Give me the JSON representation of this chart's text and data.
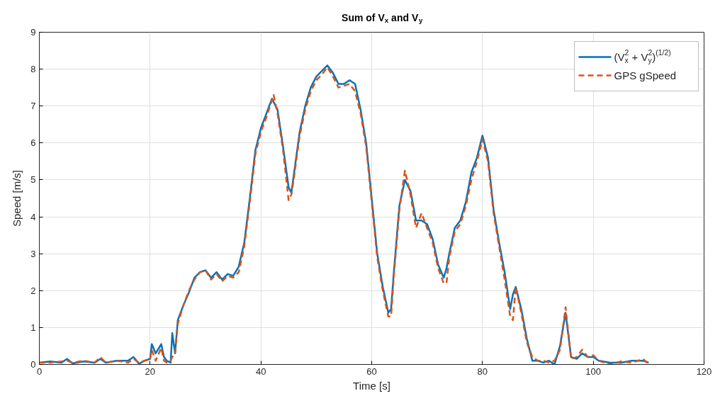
{
  "chart_data": {
    "type": "line",
    "title": "Sum of V$_{x}$ and V$_{y}$",
    "xlabel": "Time [s]",
    "ylabel": "Speed [m/s]",
    "xlim": [
      0,
      120
    ],
    "ylim": [
      0,
      9
    ],
    "xticks": [
      0,
      20,
      40,
      60,
      80,
      100,
      120
    ],
    "yticks": [
      0,
      1,
      2,
      3,
      4,
      5,
      6,
      7,
      8,
      9
    ],
    "grid": true,
    "legend": "top right",
    "marker": "none",
    "series": [
      {
        "name": "(V$_{x}$$^{2}$ + V$_{y}$$^{2}$)$^{(1/2)}$",
        "color": "#0072bd",
        "line_style": "solid",
        "x": [
          0,
          2,
          4,
          5,
          6,
          8,
          10,
          11,
          12,
          14,
          16,
          17,
          18,
          19,
          20,
          20.3,
          21,
          22,
          22.5,
          23,
          23.7,
          24,
          24.5,
          25,
          26,
          27,
          28,
          29,
          30,
          31,
          32,
          33,
          34,
          35,
          36,
          37,
          38,
          39,
          40,
          41,
          42,
          43,
          44,
          45,
          45.5,
          46,
          47,
          48,
          49,
          50,
          51,
          52,
          53,
          54,
          55,
          56,
          57,
          58,
          59,
          60,
          61,
          62,
          63,
          63.5,
          64,
          65,
          66,
          67,
          68,
          69,
          70,
          71,
          72,
          73,
          73.5,
          74,
          75,
          76,
          77,
          78,
          79,
          80,
          81,
          82,
          83,
          84,
          85,
          85.5,
          86,
          87,
          88,
          89,
          90,
          91,
          92,
          93,
          94,
          95,
          96,
          97,
          98,
          99,
          100,
          101,
          103,
          105,
          107,
          109,
          110
        ],
        "values": [
          0.05,
          0.08,
          0.05,
          0.15,
          0.03,
          0.08,
          0.05,
          0.15,
          0.05,
          0.1,
          0.1,
          0.2,
          0.02,
          0.1,
          0.15,
          0.55,
          0.3,
          0.55,
          0.2,
          0.1,
          0.05,
          0.85,
          0.3,
          1.2,
          1.6,
          1.95,
          2.35,
          2.5,
          2.55,
          2.35,
          2.5,
          2.3,
          2.45,
          2.4,
          2.65,
          3.3,
          4.5,
          5.8,
          6.4,
          6.8,
          7.2,
          6.9,
          5.9,
          4.8,
          4.65,
          5.2,
          6.3,
          7.0,
          7.5,
          7.8,
          7.95,
          8.1,
          7.9,
          7.6,
          7.6,
          7.7,
          7.6,
          6.9,
          6.0,
          4.5,
          3.0,
          2.1,
          1.4,
          1.5,
          2.5,
          4.3,
          5.0,
          4.7,
          3.9,
          3.9,
          3.8,
          3.4,
          2.7,
          2.35,
          2.6,
          3.0,
          3.7,
          3.9,
          4.4,
          5.2,
          5.6,
          6.2,
          5.6,
          4.2,
          3.3,
          2.5,
          1.5,
          1.9,
          2.1,
          1.5,
          0.7,
          0.1,
          0.1,
          0.05,
          0.1,
          0.0,
          0.5,
          1.4,
          0.2,
          0.15,
          0.3,
          0.2,
          0.2,
          0.1,
          0.05,
          0.05,
          0.1,
          0.1,
          0.05
        ]
      },
      {
        "name": "GPS gSpeed",
        "color": "#d95319",
        "line_style": "dashed",
        "x": [
          0,
          2,
          4,
          5,
          6,
          8,
          10,
          11,
          12,
          14,
          16,
          17,
          18,
          19,
          20,
          20.3,
          21,
          22,
          22.5,
          23,
          23.7,
          24,
          24.5,
          25,
          26,
          27,
          28,
          29,
          30,
          31,
          32,
          33,
          34,
          35,
          36,
          37,
          38,
          39,
          40,
          41,
          42.3,
          43,
          44,
          45,
          45.5,
          46,
          47,
          48,
          49,
          50,
          51,
          52,
          53,
          54,
          55,
          56,
          57,
          58,
          59,
          60,
          61,
          62,
          63,
          63.5,
          64,
          65,
          66,
          67,
          68,
          69,
          70,
          71,
          72,
          73,
          73.5,
          74,
          75,
          76,
          77,
          78,
          79,
          80,
          81,
          82,
          83,
          84,
          85,
          85.5,
          86,
          87,
          88,
          89,
          90,
          91,
          92,
          93,
          94,
          95,
          96,
          97,
          98,
          99,
          100,
          101,
          103,
          105,
          107,
          109,
          110
        ],
        "values": [
          0.05,
          0.05,
          0.08,
          0.1,
          0.05,
          0.1,
          0.05,
          0.2,
          0.05,
          0.1,
          0.05,
          0.15,
          0.05,
          0.1,
          0.15,
          0.4,
          0.1,
          0.45,
          0.1,
          0.05,
          0.1,
          0.2,
          0.3,
          1.1,
          1.6,
          2.0,
          2.3,
          2.5,
          2.55,
          2.3,
          2.45,
          2.25,
          2.4,
          2.35,
          2.5,
          3.2,
          4.4,
          5.7,
          6.3,
          6.7,
          7.3,
          6.8,
          5.8,
          4.45,
          4.6,
          5.1,
          6.2,
          6.9,
          7.4,
          7.7,
          7.85,
          8.05,
          7.8,
          7.5,
          7.55,
          7.6,
          7.4,
          6.8,
          5.9,
          4.4,
          2.9,
          2.0,
          1.3,
          1.3,
          2.4,
          4.2,
          5.25,
          4.6,
          3.7,
          4.1,
          3.7,
          3.3,
          2.6,
          2.2,
          2.2,
          2.9,
          3.6,
          3.8,
          4.3,
          5.0,
          5.5,
          6.1,
          5.5,
          4.1,
          3.2,
          2.3,
          1.3,
          1.2,
          2.1,
          1.4,
          0.6,
          0.2,
          0.1,
          0.1,
          0.05,
          0.1,
          0.4,
          1.55,
          0.15,
          0.2,
          0.4,
          0.2,
          0.25,
          0.1,
          0.0,
          0.08,
          0.05,
          0.15,
          0.0
        ]
      }
    ]
  }
}
